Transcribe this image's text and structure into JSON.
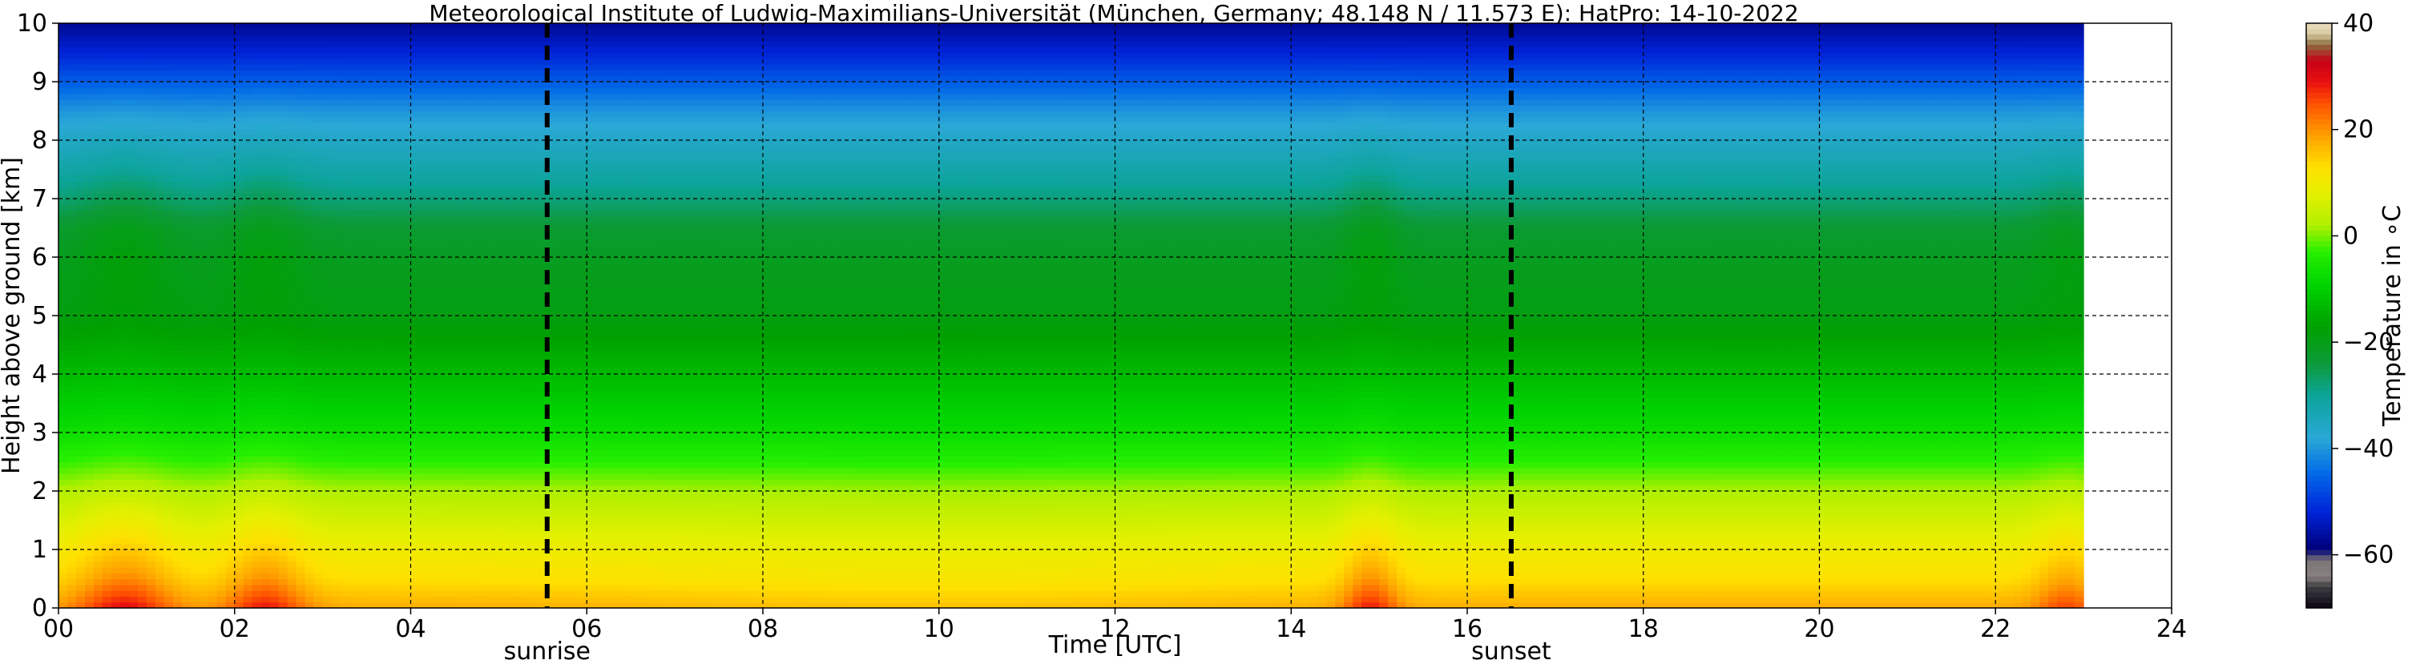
{
  "chart_data": {
    "type": "heatmap",
    "title": "Meteorological Institute of Ludwig-Maximilians-Universität (München, Germany; 48.148 N / 11.573 E):    HatPro: 14-10-2022",
    "xlabel": "Time [UTC]",
    "ylabel": "Height above ground [km]",
    "xlim": [
      0,
      24
    ],
    "ylim": [
      0,
      10
    ],
    "data_x_extent": [
      0,
      23.0
    ],
    "x_ticks": [
      0,
      2,
      4,
      6,
      8,
      10,
      12,
      14,
      16,
      18,
      20,
      22,
      24
    ],
    "x_tick_labels": [
      "00",
      "02",
      "04",
      "06",
      "08",
      "10",
      "12",
      "14",
      "16",
      "18",
      "20",
      "22",
      "24"
    ],
    "y_ticks": [
      0,
      1,
      2,
      3,
      4,
      5,
      6,
      7,
      8,
      9,
      10
    ],
    "y_tick_labels": [
      "0",
      "1",
      "2",
      "3",
      "4",
      "5",
      "6",
      "7",
      "8",
      "9",
      "10"
    ],
    "grid": true,
    "annotations": [
      {
        "label": "sunrise",
        "x": 5.55
      },
      {
        "label": "sunset",
        "x": 16.5
      }
    ],
    "colorbar": {
      "label": "Temperature in $^\\circ$C",
      "range": [
        -70,
        40
      ],
      "ticks": [
        40,
        20,
        0,
        -20,
        -40,
        -60
      ],
      "tick_labels": [
        "40",
        "20",
        "0",
        "−20",
        "−40",
        "−60"
      ],
      "stops": [
        {
          "v": -70,
          "c": "#0d0614"
        },
        {
          "v": -66,
          "c": "#3c3c40"
        },
        {
          "v": -64,
          "c": "#8a8080"
        },
        {
          "v": -61,
          "c": "#7a7676"
        },
        {
          "v": -59,
          "c": "#000078"
        },
        {
          "v": -52,
          "c": "#0022d8"
        },
        {
          "v": -45,
          "c": "#0066e8"
        },
        {
          "v": -38,
          "c": "#2aa8d6"
        },
        {
          "v": -30,
          "c": "#0ca49a"
        },
        {
          "v": -24,
          "c": "#0c9a3a"
        },
        {
          "v": -17,
          "c": "#00a000"
        },
        {
          "v": -9,
          "c": "#00d400"
        },
        {
          "v": -3,
          "c": "#26f000"
        },
        {
          "v": 2,
          "c": "#b0f000"
        },
        {
          "v": 8,
          "c": "#e4f000"
        },
        {
          "v": 13,
          "c": "#ffe000"
        },
        {
          "v": 19,
          "c": "#ffa000"
        },
        {
          "v": 25,
          "c": "#ff5000"
        },
        {
          "v": 29,
          "c": "#e81010"
        },
        {
          "v": 33,
          "c": "#c80018"
        },
        {
          "v": 36,
          "c": "#8c6c40"
        },
        {
          "v": 38,
          "c": "#d8c8a0"
        },
        {
          "v": 40,
          "c": "#ece0c0"
        }
      ]
    },
    "temperature_profile": {
      "description_free": true,
      "heights_km": [
        0,
        0.2,
        0.5,
        1.0,
        1.5,
        2.0,
        2.5,
        3.0,
        3.5,
        4.0,
        5.0,
        6.0,
        6.5,
        7.0,
        7.5,
        8.0,
        8.5,
        9.0,
        9.5,
        10.0
      ],
      "base_temps_c": [
        18,
        16,
        13,
        10,
        6,
        2,
        -3,
        -7,
        -10,
        -13,
        -19,
        -21,
        -23,
        -28,
        -32,
        -36,
        -40,
        -46,
        -52,
        -57
      ],
      "warm_bumps": [
        {
          "center_h": 0.75,
          "width_h": 0.55,
          "amp_c": 12
        },
        {
          "center_h": 2.35,
          "width_h": 0.45,
          "amp_c": 11
        },
        {
          "center_h": 14.9,
          "width_h": 0.32,
          "amp_c": 11
        },
        {
          "center_h": 22.8,
          "width_h": 0.35,
          "amp_c": 8
        }
      ]
    }
  }
}
